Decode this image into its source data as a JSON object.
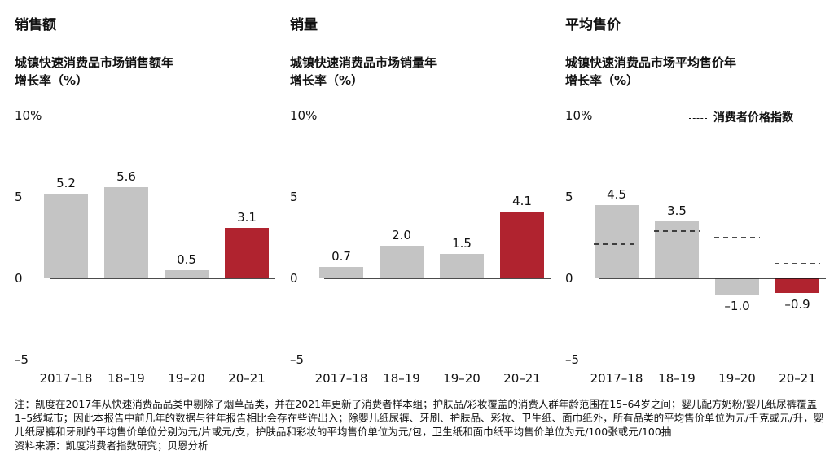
{
  "panels": [
    {
      "heading": "销售额",
      "subtitle_line1": "城镇快速消费品市场销售额年",
      "subtitle_line2": "增长率（%）"
    },
    {
      "heading": "销量",
      "subtitle_line1": "城镇快速消费品市场销量年",
      "subtitle_line2": "增长率（%）"
    },
    {
      "heading": "平均售价",
      "subtitle_line1": "城镇快速消费品市场平均售价年",
      "subtitle_line2": "增长率（%）"
    }
  ],
  "legend": {
    "label": "消费者价格指数"
  },
  "colors": {
    "gray": "#c4c4c4",
    "red": "#b0232f",
    "axis": "#111111"
  },
  "chart_data": [
    {
      "type": "bar",
      "title": "销售额",
      "ylabel": "城镇快速消费品市场销售额年增长率（%）",
      "categories": [
        "2017–18",
        "18–19",
        "19–20",
        "20–21"
      ],
      "values": [
        5.2,
        5.6,
        0.5,
        3.1
      ],
      "value_labels": [
        "5.2",
        "5.6",
        "0.5",
        "3.1"
      ],
      "highlight_index": 3,
      "ylim": [
        -5,
        10
      ],
      "yticks": [
        -5,
        0,
        5,
        10
      ],
      "ytick_labels": [
        "–5",
        "0",
        "5",
        "10%"
      ]
    },
    {
      "type": "bar",
      "title": "销量",
      "ylabel": "城镇快速消费品市场销量年增长率（%）",
      "categories": [
        "2017–18",
        "18–19",
        "19–20",
        "20–21"
      ],
      "values": [
        0.7,
        2.0,
        1.5,
        4.1
      ],
      "value_labels": [
        "0.7",
        "2.0",
        "1.5",
        "4.1"
      ],
      "highlight_index": 3,
      "ylim": [
        -5,
        10
      ],
      "yticks": [
        -5,
        0,
        5,
        10
      ],
      "ytick_labels": [
        "–5",
        "0",
        "5",
        "10%"
      ]
    },
    {
      "type": "bar",
      "title": "平均售价",
      "ylabel": "城镇快速消费品市场平均售价年增长率（%）",
      "categories": [
        "2017–18",
        "18–19",
        "19–20",
        "20–21"
      ],
      "values": [
        4.5,
        3.5,
        -1.0,
        -0.9
      ],
      "value_labels": [
        "4.5",
        "3.5",
        "–1.0",
        "–0.9"
      ],
      "highlight_index": 3,
      "ylim": [
        -5,
        10
      ],
      "yticks": [
        -5,
        0,
        5,
        10
      ],
      "ytick_labels": [
        "–5",
        "0",
        "5",
        "10%"
      ],
      "reference_series": {
        "name": "消费者价格指数",
        "values": [
          2.1,
          2.9,
          2.5,
          0.9
        ]
      }
    }
  ],
  "notes": {
    "note": "注：凯度在2017年从快速消费品品类中剔除了烟草品类，并在2021年更新了消费者样本组；护肤品/彩妆覆盖的消费人群年龄范围在15–64岁之间；婴儿配方奶粉/婴儿纸尿裤覆盖1–5线城市；因此本报告中前几年的数据与往年报告相比会存在些许出入；除婴儿纸尿裤、牙刷、护肤品、彩妆、卫生纸、面巾纸外，所有品类的平均售价单位为元/千克或元/升，婴儿纸尿裤和牙刷的平均售价单位分别为元/片或元/支，护肤品和彩妆的平均售价单位为元/包，卫生纸和面巾纸平均售价单位为元/100张或元/100抽",
    "source": "资料来源：凯度消费者指数研究；贝恩分析"
  }
}
